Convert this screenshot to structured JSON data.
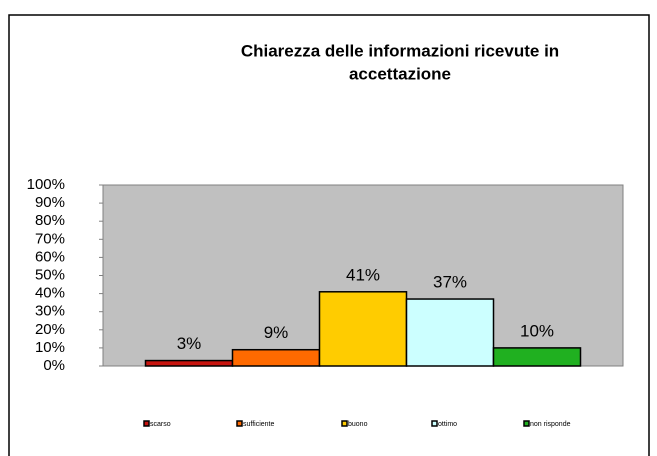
{
  "chart_data": {
    "type": "bar",
    "title": [
      "Chiarezza delle informazioni ricevute in",
      "accettazione"
    ],
    "categories": [
      "scarso",
      "sufficiente",
      "buono",
      "ottimo",
      "non risponde"
    ],
    "values": [
      3,
      9,
      41,
      37,
      10
    ],
    "value_labels": [
      "3%",
      "9%",
      "41%",
      "37%",
      "10%"
    ],
    "colors": [
      "#c8140f",
      "#ff6a00",
      "#ffcc00",
      "#ccffff",
      "#20b020"
    ],
    "ylim": [
      0,
      100
    ],
    "yticks": [
      {
        "value": 0,
        "label": "0%"
      },
      {
        "value": 10,
        "label": "10%"
      },
      {
        "value": 20,
        "label": "20%"
      },
      {
        "value": 30,
        "label": "30%"
      },
      {
        "value": 40,
        "label": "40%"
      },
      {
        "value": 50,
        "label": "50%"
      },
      {
        "value": 60,
        "label": "60%"
      },
      {
        "value": 70,
        "label": "70%"
      },
      {
        "value": 80,
        "label": "80%"
      },
      {
        "value": 90,
        "label": "90%"
      },
      {
        "value": 100,
        "label": "100%"
      }
    ],
    "grid": false,
    "legend": "bottom"
  }
}
